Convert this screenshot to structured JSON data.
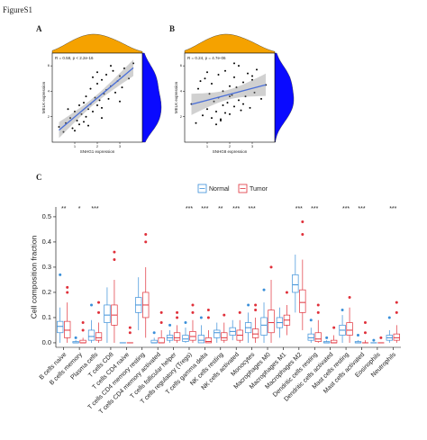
{
  "figure_label": "FigureS1",
  "chart_data": [
    {
      "type": "scatter",
      "panel_label": "A",
      "annotation": "R = 0.58, p < 2.2e-16",
      "x_label": "SNHG1 expression",
      "y_label": "MELK expression",
      "xlim": [
        0,
        4
      ],
      "ylim": [
        0,
        7
      ],
      "xticks": [
        1,
        2,
        3
      ],
      "yticks": [
        2,
        4,
        6
      ],
      "color": "#000000",
      "fit_color": "#4a6fd8",
      "top_density_color": "#f5a200",
      "right_density_color": "#0a0aff",
      "x": [
        0.3,
        0.5,
        0.6,
        0.8,
        0.9,
        1.0,
        1.1,
        1.2,
        1.2,
        1.3,
        1.4,
        1.5,
        1.5,
        1.6,
        1.7,
        1.7,
        1.8,
        1.9,
        2.0,
        2.0,
        2.1,
        2.2,
        2.2,
        2.3,
        2.4,
        2.4,
        2.5,
        2.6,
        2.7,
        2.8,
        2.9,
        3.0,
        3.1,
        3.2,
        3.4,
        3.6,
        1.0,
        1.4,
        1.8,
        2.2,
        2.6,
        0.7,
        1.6,
        2.0,
        3.0
      ],
      "y": [
        1.2,
        0.8,
        1.5,
        1.9,
        1.1,
        2.4,
        1.7,
        2.9,
        1.4,
        2.2,
        3.1,
        2.0,
        3.6,
        2.6,
        3.0,
        4.2,
        2.4,
        3.5,
        2.9,
        4.6,
        3.3,
        2.7,
        4.9,
        3.8,
        4.1,
        5.3,
        3.4,
        4.4,
        5.6,
        3.9,
        4.8,
        5.2,
        4.3,
        5.8,
        5.0,
        6.2,
        0.9,
        1.6,
        5.1,
        1.9,
        6.0,
        2.6,
        1.3,
        5.5,
        3.2
      ]
    },
    {
      "type": "scatter",
      "panel_label": "B",
      "annotation": "R = 0.24, p = 4.7e-06",
      "x_label": "SNHG8 expression",
      "y_label": "MELK expression",
      "xlim": [
        0,
        4
      ],
      "ylim": [
        0,
        7
      ],
      "xticks": [
        1,
        2,
        3
      ],
      "yticks": [
        2,
        4,
        6
      ],
      "color": "#000000",
      "fit_color": "#4a6fd8",
      "top_density_color": "#f5a200",
      "right_density_color": "#0a0aff",
      "x": [
        0.3,
        0.5,
        0.6,
        0.8,
        0.9,
        1.0,
        1.1,
        1.2,
        1.2,
        1.3,
        1.4,
        1.5,
        1.5,
        1.6,
        1.7,
        1.7,
        1.8,
        1.9,
        2.0,
        2.0,
        2.1,
        2.2,
        2.2,
        2.3,
        2.4,
        2.4,
        2.5,
        2.6,
        2.7,
        2.8,
        2.9,
        3.0,
        3.1,
        3.2,
        3.4,
        3.6,
        1.0,
        1.4,
        1.8,
        2.2,
        2.6,
        0.7,
        1.6,
        2.0,
        3.0
      ],
      "y": [
        3.0,
        1.5,
        4.2,
        2.1,
        5.0,
        2.6,
        3.8,
        1.9,
        4.6,
        3.2,
        2.4,
        5.3,
        3.5,
        1.7,
        4.0,
        2.9,
        5.6,
        3.1,
        4.4,
        2.2,
        3.7,
        5.1,
        2.8,
        4.3,
        3.3,
        6.0,
        2.5,
        4.7,
        3.6,
        5.4,
        2.7,
        4.9,
        3.9,
        5.7,
        3.4,
        4.5,
        5.5,
        1.4,
        2.3,
        6.2,
        3.0,
        4.8,
        1.8,
        3.6,
        5.2
      ]
    },
    {
      "type": "box",
      "panel_label": "C",
      "y_label": "Cell composition fraction",
      "ylim": [
        -0.018,
        0.539
      ],
      "yticks": [
        {
          "value": 0,
          "label": "0.0"
        },
        0.1,
        0.2,
        0.3,
        0.4,
        0.5
      ],
      "categories": [
        "B cells naive",
        "B cells memory",
        "Plasma cells",
        "T cells CD8",
        "T cells CD4 naive",
        "T cells CD4 memory resting",
        "T cells CD4 memory activated",
        "T cells follicular helper",
        "T cells regulatory (Tregs)",
        "T cells gamma delta",
        "NK cells resting",
        "NK cells activated",
        "Monocytes",
        "Macrophages M0",
        "Macrophages M1",
        "Macrophages M2",
        "Dendritic cells resting",
        "Dendritic cells activated",
        "Mast cells resting",
        "Mast cells activated",
        "Eosinophils",
        "Neutrophils"
      ],
      "significance": [
        "**",
        "*",
        "***",
        null,
        null,
        null,
        null,
        null,
        "***",
        "***",
        "**",
        "***",
        "***",
        null,
        null,
        "***",
        "***",
        null,
        "***",
        "***",
        null,
        "***"
      ],
      "series": [
        {
          "name": "Normal",
          "color": "#3a8fd9",
          "boxes": [
            [
              0,
              0.04,
              0.065,
              0.085,
              0.14
            ],
            [
              0,
              0,
              0,
              0.005,
              0.01
            ],
            [
              0,
              0.01,
              0.025,
              0.05,
              0.09
            ],
            [
              0,
              0.08,
              0.11,
              0.15,
              0.22
            ],
            [
              0,
              0,
              0,
              0,
              0
            ],
            [
              0.05,
              0.12,
              0.15,
              0.18,
              0.26
            ],
            [
              0,
              0,
              0,
              0.01,
              0.02
            ],
            [
              0,
              0.01,
              0.02,
              0.03,
              0.05
            ],
            [
              0,
              0.005,
              0.015,
              0.03,
              0.06
            ],
            [
              0,
              0,
              0.01,
              0.03,
              0.07
            ],
            [
              0,
              0.02,
              0.04,
              0.05,
              0.08
            ],
            [
              0.01,
              0.03,
              0.045,
              0.06,
              0.09
            ],
            [
              0,
              0.04,
              0.06,
              0.08,
              0.12
            ],
            [
              0,
              0.03,
              0.07,
              0.1,
              0.16
            ],
            [
              0.02,
              0.06,
              0.08,
              0.1,
              0.14
            ],
            [
              0.12,
              0.2,
              0.23,
              0.27,
              0.35
            ],
            [
              0,
              0.01,
              0.02,
              0.035,
              0.06
            ],
            [
              0,
              0,
              0,
              0.005,
              0.01
            ],
            [
              0,
              0.03,
              0.05,
              0.07,
              0.11
            ],
            [
              0,
              0,
              0,
              0.005,
              0.01
            ],
            [
              0,
              0,
              0,
              0,
              0
            ],
            [
              0,
              0.01,
              0.02,
              0.03,
              0.05
            ]
          ],
          "outliers": [
            [
              0.27
            ],
            [
              0.02
            ],
            [
              0.15
            ],
            [],
            [],
            [],
            [
              0.04
            ],
            [
              0.07
            ],
            [
              0.08
            ],
            [
              0.1
            ],
            [],
            [],
            [
              0.15
            ],
            [
              0.21
            ],
            [],
            [],
            [
              0.09
            ],
            [
              0.02
            ],
            [
              0.13
            ],
            [
              0.03
            ],
            [
              0.01
            ],
            [
              0.1
            ]
          ]
        },
        {
          "name": "Tumor",
          "color": "#e0303a",
          "boxes": [
            [
              0,
              0.02,
              0.05,
              0.085,
              0.16
            ],
            [
              0,
              0,
              0,
              0.01,
              0.02
            ],
            [
              0,
              0.01,
              0.02,
              0.04,
              0.08
            ],
            [
              0,
              0.07,
              0.11,
              0.15,
              0.25
            ],
            [
              0,
              0,
              0,
              0,
              0
            ],
            [
              0.02,
              0.1,
              0.15,
              0.2,
              0.3
            ],
            [
              0,
              0,
              0,
              0.02,
              0.05
            ],
            [
              0,
              0.01,
              0.02,
              0.04,
              0.07
            ],
            [
              0,
              0.01,
              0.025,
              0.045,
              0.09
            ],
            [
              0,
              0,
              0.005,
              0.02,
              0.05
            ],
            [
              0,
              0.01,
              0.02,
              0.04,
              0.08
            ],
            [
              0,
              0.01,
              0.03,
              0.05,
              0.09
            ],
            [
              0,
              0.02,
              0.035,
              0.055,
              0.1
            ],
            [
              0,
              0.04,
              0.08,
              0.13,
              0.25
            ],
            [
              0.03,
              0.07,
              0.09,
              0.11,
              0.15
            ],
            [
              0.05,
              0.12,
              0.16,
              0.21,
              0.33
            ],
            [
              0,
              0.005,
              0.015,
              0.04,
              0.09
            ],
            [
              0,
              0,
              0,
              0.01,
              0.03
            ],
            [
              0,
              0.03,
              0.05,
              0.08,
              0.14
            ],
            [
              0,
              0,
              0,
              0,
              0.01
            ],
            [
              0,
              0,
              0,
              0,
              0
            ],
            [
              0,
              0.01,
              0.02,
              0.035,
              0.07
            ]
          ],
          "outliers": [
            [
              0.2,
              0.22
            ],
            [
              0.05,
              0.08
            ],
            [
              0.12,
              0.16
            ],
            [
              0.36,
              0.33
            ],
            [
              0.04,
              0.06
            ],
            [
              0.4,
              0.43
            ],
            [
              0.08,
              0.12
            ],
            [
              0.1,
              0.12
            ],
            [
              0.12,
              0.15
            ],
            [
              0.1,
              0.13
            ],
            [
              0.11
            ],
            [
              0.12
            ],
            [
              0.13,
              0.15
            ],
            [
              0.3
            ],
            [
              0.2
            ],
            [
              0.43,
              0.48
            ],
            [
              0.12,
              0.15
            ],
            [
              0.06
            ],
            [
              0.18
            ],
            [
              0.04,
              0.08
            ],
            [
              0.02
            ],
            [
              0.12,
              0.16
            ]
          ]
        }
      ]
    }
  ]
}
